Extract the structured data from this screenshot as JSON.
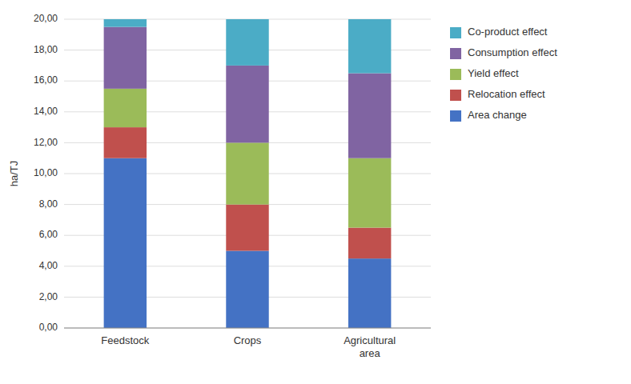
{
  "chart_data": {
    "type": "bar",
    "stacked": true,
    "categories": [
      "Feedstock",
      "Crops",
      "Agricultural\narea"
    ],
    "series": [
      {
        "name": "Area change",
        "color": "#4472C4",
        "values": [
          11.0,
          5.0,
          4.5
        ]
      },
      {
        "name": "Relocation effect",
        "color": "#C0504D",
        "values": [
          2.0,
          3.0,
          2.0
        ]
      },
      {
        "name": "Yield effect",
        "color": "#9BBB59",
        "values": [
          2.5,
          4.0,
          4.5
        ]
      },
      {
        "name": "Consumption effect",
        "color": "#8064A2",
        "values": [
          4.0,
          5.0,
          5.5
        ]
      },
      {
        "name": "Co-product effect",
        "color": "#4BACC6",
        "values": [
          0.5,
          3.0,
          3.5
        ]
      }
    ],
    "ylabel": "ha/TJ",
    "ylim": [
      0,
      20
    ],
    "yticks": [
      {
        "value": 0,
        "label": "0,00"
      },
      {
        "value": 2,
        "label": "2,00"
      },
      {
        "value": 4,
        "label": "4,00"
      },
      {
        "value": 6,
        "label": "6,00"
      },
      {
        "value": 8,
        "label": "8,00"
      },
      {
        "value": 10,
        "label": "10,00"
      },
      {
        "value": 12,
        "label": "12,00"
      },
      {
        "value": 14,
        "label": "14,00"
      },
      {
        "value": 16,
        "label": "16,00"
      },
      {
        "value": 18,
        "label": "18,00"
      },
      {
        "value": 20,
        "label": "20,00"
      }
    ],
    "grid": true,
    "legend": "right"
  }
}
